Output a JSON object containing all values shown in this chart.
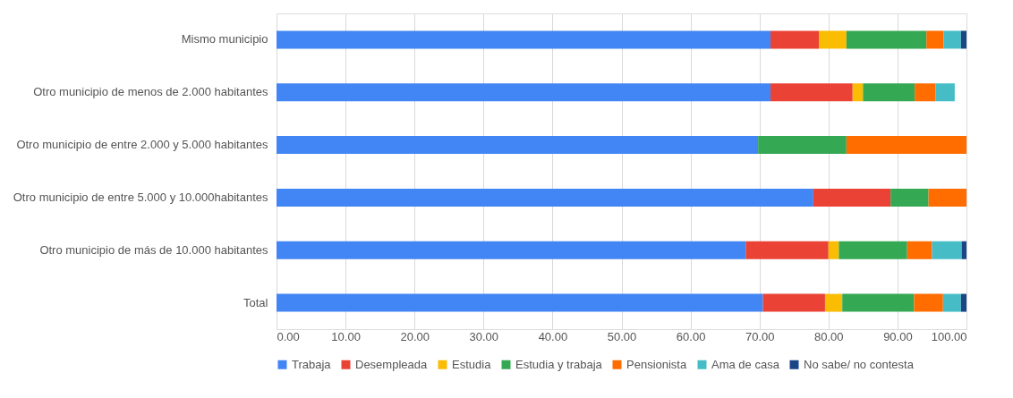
{
  "chart_data": {
    "type": "bar",
    "orientation": "horizontal",
    "stacked": true,
    "categories": [
      "Mismo municipio",
      "Otro municipio de menos de 2.000 habitantes",
      "Otro municipio de entre 2.000 y 5.000 habitantes",
      "Otro municipio de entre 5.000  y 10.000habitantes",
      "Otro municipio de más de 10.000 habitantes",
      "Total"
    ],
    "series": [
      {
        "name": "Trabaja",
        "color": "#4285f4",
        "values": [
          71.6,
          71.6,
          69.8,
          77.8,
          68.0,
          70.5
        ]
      },
      {
        "name": "Desempleada",
        "color": "#ea4335",
        "values": [
          7.0,
          11.9,
          null,
          11.2,
          12.0,
          9.0
        ]
      },
      {
        "name": "Estudia",
        "color": "#fbbc04",
        "values": [
          4.0,
          1.5,
          null,
          null,
          1.5,
          2.5
        ]
      },
      {
        "name": "Estudia y trabaja",
        "color": "#34a853",
        "values": [
          11.6,
          7.5,
          12.8,
          5.5,
          9.9,
          10.4
        ]
      },
      {
        "name": "Pensionista",
        "color": "#ff6d01",
        "values": [
          2.5,
          3.0,
          17.4,
          5.5,
          3.6,
          4.2
        ]
      },
      {
        "name": "Ama de casa",
        "color": "#46bdc6",
        "values": [
          2.5,
          2.8,
          null,
          null,
          4.3,
          2.6
        ]
      },
      {
        "name": "No sabe/ no contesta",
        "color": "#1c4587",
        "values": [
          0.8,
          null,
          null,
          null,
          0.7,
          0.8
        ]
      }
    ],
    "xlim": [
      0,
      100
    ],
    "xticks": [
      {
        "value": 0,
        "label": "0.00"
      },
      {
        "value": 10,
        "label": "10.00"
      },
      {
        "value": 20,
        "label": "20.00"
      },
      {
        "value": 30,
        "label": "30.00"
      },
      {
        "value": 40,
        "label": "40.00"
      },
      {
        "value": 50,
        "label": "50.00"
      },
      {
        "value": 60,
        "label": "60.00"
      },
      {
        "value": 70,
        "label": "70.00"
      },
      {
        "value": 80,
        "label": "80.00"
      },
      {
        "value": 90,
        "label": "90.00"
      },
      {
        "value": 100,
        "label": "100.00"
      }
    ],
    "grid": "x",
    "legend": "bottom"
  }
}
